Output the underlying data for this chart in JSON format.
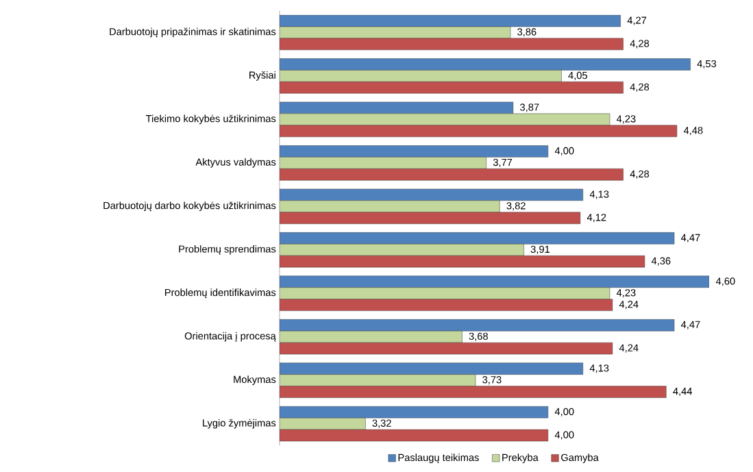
{
  "chart_data": {
    "type": "bar",
    "orientation": "horizontal",
    "categories": [
      "Darbuotojų pripažinimas ir skatinimas",
      "Ryšiai",
      "Tiekimo kokybės užtikrinimas",
      "Aktyvus valdymas",
      "Darbuotojų darbo kokybės užtikrinimas",
      "Problemų sprendimas",
      "Problemų identifikavimas",
      "Orientacija į procesą",
      "Mokymas",
      "Lygio žymėjimas"
    ],
    "series": [
      {
        "name": "Paslaugų teikimas",
        "color": "#4f81bd",
        "values": [
          4.27,
          4.53,
          3.87,
          4.0,
          4.13,
          4.47,
          4.6,
          4.47,
          4.13,
          4.0
        ],
        "value_labels": [
          "4,27",
          "4,53",
          "3,87",
          "4,00",
          "4,13",
          "4,47",
          "4,60",
          "4,47",
          "4,13",
          "4,00"
        ]
      },
      {
        "name": "Prekyba",
        "color": "#c3d69b",
        "values": [
          3.86,
          4.05,
          4.23,
          3.77,
          3.82,
          3.91,
          4.23,
          3.68,
          3.73,
          3.32
        ],
        "value_labels": [
          "3,86",
          "4,05",
          "4,23",
          "3,77",
          "3,82",
          "3,91",
          "4,23",
          "3,68",
          "3,73",
          "3,32"
        ]
      },
      {
        "name": "Gamyba",
        "color": "#c0504d",
        "values": [
          4.28,
          4.28,
          4.48,
          4.28,
          4.12,
          4.36,
          4.24,
          4.24,
          4.44,
          4.0
        ],
        "value_labels": [
          "4,28",
          "4,28",
          "4,48",
          "4,28",
          "4,12",
          "4,36",
          "4,24",
          "4,24",
          "4,44",
          "4,00"
        ]
      }
    ],
    "xlim": [
      3,
      4.6
    ],
    "legend": "bottom",
    "tick_labels": "y"
  }
}
